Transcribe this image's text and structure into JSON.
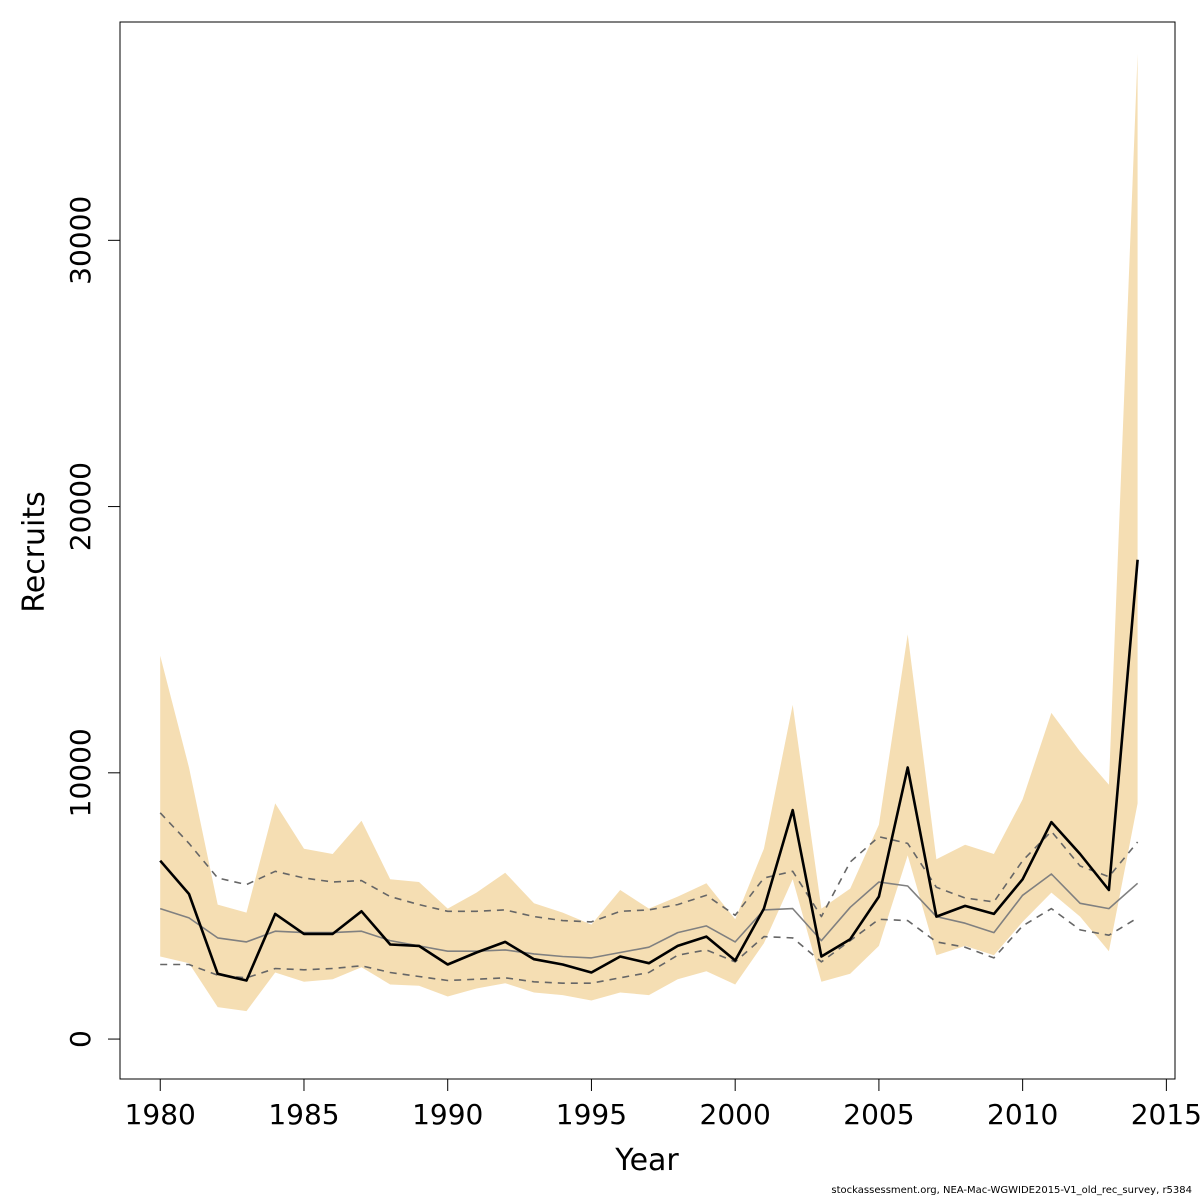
{
  "chart_data": {
    "type": "line",
    "xlabel": "Year",
    "ylabel": "Recruits",
    "xlim": [
      1978.6,
      2015.3
    ],
    "ylim": [
      -1500,
      38200
    ],
    "x_ticks": [
      1980,
      1985,
      1990,
      1995,
      2000,
      2005,
      2010,
      2015
    ],
    "y_ticks": [
      0,
      10000,
      20000,
      30000
    ],
    "grid": false,
    "legend": "none",
    "x": [
      1980,
      1981,
      1982,
      1983,
      1984,
      1985,
      1986,
      1987,
      1988,
      1989,
      1990,
      1991,
      1992,
      1993,
      1994,
      1995,
      1996,
      1997,
      1998,
      1999,
      2000,
      2001,
      2002,
      2003,
      2004,
      2005,
      2006,
      2007,
      2008,
      2009,
      2010,
      2011,
      2012,
      2013,
      2014
    ],
    "series": [
      {
        "role": "estimate",
        "style": "solid-bold",
        "color": "#000000",
        "values": [
          6700,
          5450,
          2450,
          2200,
          4700,
          3950,
          3950,
          4800,
          3550,
          3500,
          2800,
          3250,
          3650,
          3000,
          2800,
          2500,
          3100,
          2850,
          3500,
          3850,
          2950,
          4900,
          8600,
          3100,
          3750,
          5350,
          10200,
          4600,
          5000,
          4700,
          6000,
          8150,
          6950,
          5600,
          18000
        ]
      },
      {
        "role": "alternative",
        "style": "solid-thin",
        "color": "#808080",
        "values": [
          4900,
          4550,
          3800,
          3650,
          4050,
          4000,
          4000,
          4050,
          3700,
          3500,
          3300,
          3300,
          3350,
          3200,
          3100,
          3050,
          3250,
          3450,
          4000,
          4250,
          3650,
          4850,
          4900,
          3700,
          4950,
          5900,
          5750,
          4600,
          4350,
          4000,
          5400,
          6200,
          5100,
          4900,
          5850
        ]
      },
      {
        "role": "alternative-upper",
        "style": "dashed",
        "color": "#666666",
        "values": [
          8500,
          7350,
          6050,
          5800,
          6300,
          6050,
          5900,
          5950,
          5350,
          5050,
          4800,
          4800,
          4850,
          4600,
          4450,
          4400,
          4800,
          4850,
          5050,
          5400,
          4650,
          6050,
          6300,
          4600,
          6650,
          7600,
          7350,
          5700,
          5300,
          5150,
          6700,
          7800,
          6500,
          6100,
          7400
        ]
      },
      {
        "role": "alternative-lower",
        "style": "dashed",
        "color": "#666666",
        "values": [
          2800,
          2800,
          2400,
          2300,
          2650,
          2600,
          2650,
          2750,
          2500,
          2350,
          2200,
          2250,
          2300,
          2150,
          2100,
          2100,
          2300,
          2500,
          3150,
          3350,
          2900,
          3850,
          3800,
          2900,
          3700,
          4500,
          4450,
          3650,
          3450,
          3050,
          4250,
          4900,
          4100,
          3900,
          4550
        ]
      }
    ],
    "band": {
      "role": "confidence-interval",
      "color": "#f5deb3",
      "lower": [
        3100,
        2850,
        1200,
        1050,
        2500,
        2150,
        2250,
        2700,
        2050,
        2000,
        1600,
        1900,
        2100,
        1750,
        1650,
        1450,
        1750,
        1650,
        2250,
        2550,
        2050,
        3600,
        6000,
        2150,
        2450,
        3500,
        6900,
        3150,
        3500,
        3150,
        4400,
        5500,
        4600,
        3300,
        8850
      ],
      "upper": [
        14400,
        10200,
        5050,
        4750,
        8850,
        7150,
        6950,
        8200,
        6000,
        5900,
        4900,
        5500,
        6250,
        5100,
        4750,
        4300,
        5600,
        4900,
        5350,
        5850,
        4500,
        7150,
        12550,
        4900,
        5650,
        8050,
        15200,
        6750,
        7300,
        6950,
        9000,
        12250,
        10800,
        9550,
        37000
      ]
    }
  },
  "footnote": "stockassessment.org, NEA-Mac-WGWIDE2015-V1_old_rec_survey, r5384"
}
